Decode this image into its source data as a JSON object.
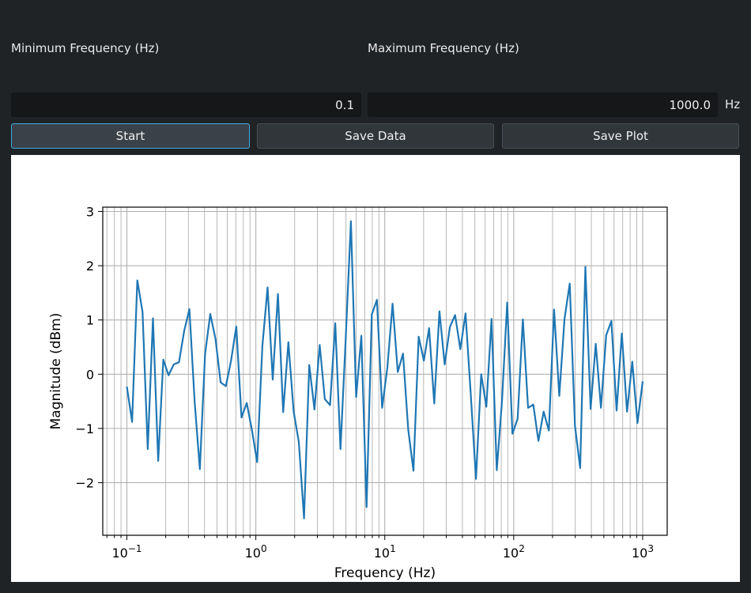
{
  "controls": {
    "min_label": "Minimum Frequency (Hz)",
    "max_label": "Maximum Frequency (Hz)",
    "min_value": "0.1",
    "max_value": "1000.0",
    "unit": "Hz",
    "start_label": "Start",
    "save_data_label": "Save Data",
    "save_plot_label": "Save Plot"
  },
  "colors": {
    "line": "#1f77b4",
    "accent": "#3daee9",
    "background": "#202326"
  },
  "chart_data": {
    "type": "line",
    "xlabel": "Frequency (Hz)",
    "ylabel": "Magnitude (dBm)",
    "xscale": "log",
    "xlim": [
      0.065,
      1550
    ],
    "ylim": [
      -2.97,
      3.08
    ],
    "grid": "both, including minor x",
    "x_ticks": [
      {
        "value": 0.1,
        "base": "10",
        "exp": "−1"
      },
      {
        "value": 1,
        "base": "10",
        "exp": "0"
      },
      {
        "value": 10,
        "base": "10",
        "exp": "1"
      },
      {
        "value": 100,
        "base": "10",
        "exp": "2"
      },
      {
        "value": 1000,
        "base": "10",
        "exp": "3"
      }
    ],
    "y_ticks": [
      {
        "value": 3,
        "label": "3"
      },
      {
        "value": 2,
        "label": "2"
      },
      {
        "value": 1,
        "label": "1"
      },
      {
        "value": 0,
        "label": "0"
      },
      {
        "value": -1,
        "label": "−1"
      },
      {
        "value": -2,
        "label": "−2"
      }
    ],
    "x_start": 0.1,
    "x_end": 1000,
    "values": [
      -0.23,
      -0.88,
      1.73,
      1.15,
      -1.38,
      1.03,
      -1.6,
      0.27,
      -0.02,
      0.18,
      0.22,
      0.8,
      1.2,
      -0.5,
      -1.75,
      0.37,
      1.11,
      0.65,
      -0.15,
      -0.22,
      0.25,
      0.88,
      -0.8,
      -0.53,
      -1.03,
      -1.62,
      0.52,
      1.6,
      -0.1,
      1.48,
      -0.7,
      0.59,
      -0.68,
      -1.25,
      -2.66,
      0.17,
      -0.65,
      0.54,
      -0.46,
      -0.57,
      0.94,
      -1.38,
      0.65,
      2.82,
      -0.42,
      0.71,
      -2.45,
      1.1,
      1.37,
      -0.62,
      0.12,
      1.3,
      0.04,
      0.38,
      -1.02,
      -1.78,
      0.69,
      0.25,
      0.85,
      -0.54,
      1.16,
      0.18,
      0.87,
      1.09,
      0.46,
      1.12,
      -0.37,
      -1.93,
      0.0,
      -0.6,
      1.02,
      -1.77,
      -0.5,
      1.32,
      -1.1,
      -0.82,
      1.01,
      -0.62,
      -0.56,
      -1.23,
      -0.69,
      -1.04,
      1.19,
      -0.4,
      1.02,
      1.67,
      -0.95,
      -1.73,
      1.98,
      -0.64,
      0.56,
      -0.62,
      0.72,
      0.98,
      -0.67,
      0.75,
      -0.69,
      0.23,
      -0.9,
      -0.13
    ]
  }
}
